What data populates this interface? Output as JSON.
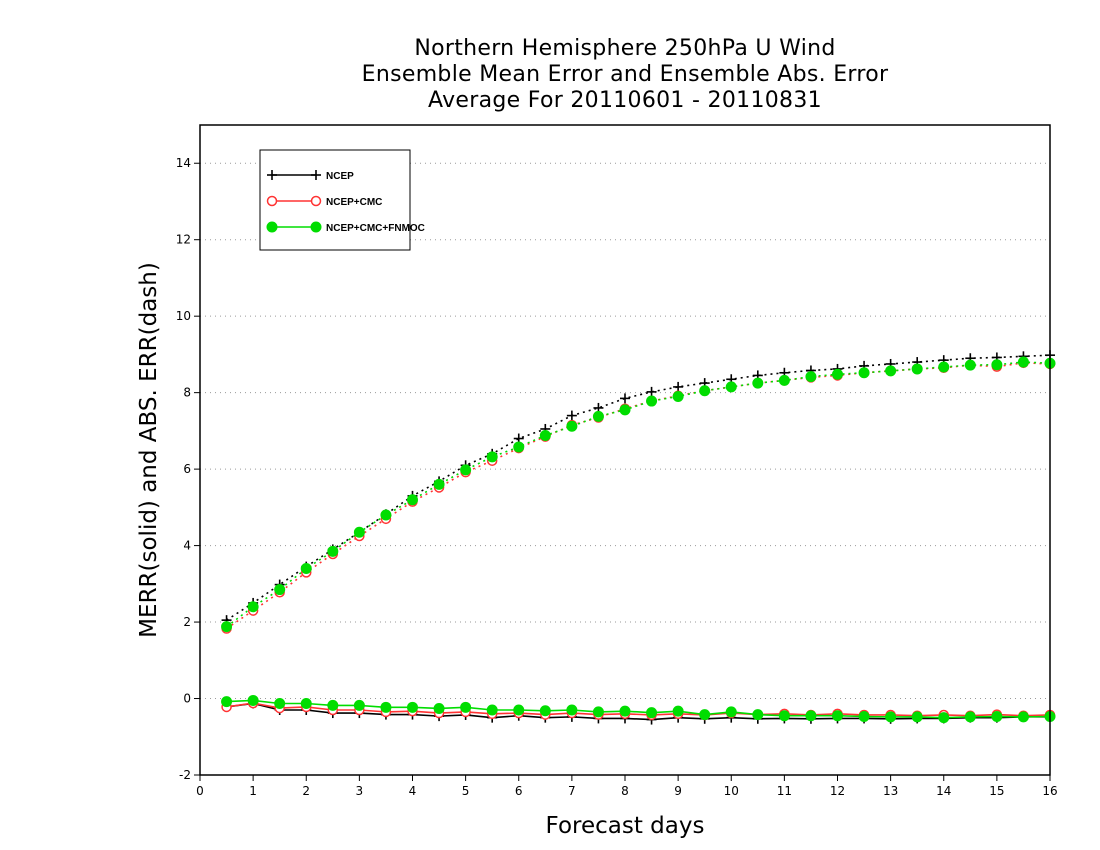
{
  "chart_data": {
    "type": "line",
    "title": [
      "Northern Hemisphere 250hPa U Wind",
      "Ensemble Mean Error and Ensemble Abs. Error",
      "Average For 20110601 - 20110831"
    ],
    "xlabel": "Forecast days",
    "ylabel": "MERR(solid) and ABS. ERR(dash)",
    "xlim": [
      0,
      16
    ],
    "ylim": [
      -2,
      15
    ],
    "xticks": [
      "0",
      "1",
      "2",
      "3",
      "4",
      "5",
      "6",
      "7",
      "8",
      "9",
      "10",
      "11",
      "12",
      "13",
      "14",
      "15",
      "16"
    ],
    "yticks": [
      "-2",
      "0",
      "2",
      "4",
      "6",
      "8",
      "10",
      "12",
      "14"
    ],
    "grid": "horizontal-dotted",
    "legend_position": "top-left",
    "x": [
      0.5,
      1,
      1.5,
      2,
      2.5,
      3,
      3.5,
      4,
      4.5,
      5,
      5.5,
      6,
      6.5,
      7,
      7.5,
      8,
      8.5,
      9,
      9.5,
      10,
      10.5,
      11,
      11.5,
      12,
      12.5,
      13,
      13.5,
      14,
      14.5,
      15,
      15.5,
      16
    ],
    "series": [
      {
        "name": "NCEP",
        "color": "#000000",
        "marker": "plus",
        "abs_error": [
          2.05,
          2.5,
          2.98,
          3.45,
          3.9,
          4.35,
          4.82,
          5.3,
          5.68,
          6.1,
          6.4,
          6.8,
          7.05,
          7.4,
          7.6,
          7.85,
          8.02,
          8.15,
          8.25,
          8.35,
          8.45,
          8.52,
          8.58,
          8.62,
          8.7,
          8.75,
          8.8,
          8.85,
          8.9,
          8.92,
          8.95,
          8.98
        ],
        "mean_error": [
          -0.22,
          -0.13,
          -0.3,
          -0.3,
          -0.38,
          -0.38,
          -0.42,
          -0.42,
          -0.46,
          -0.43,
          -0.5,
          -0.45,
          -0.5,
          -0.48,
          -0.52,
          -0.52,
          -0.55,
          -0.5,
          -0.53,
          -0.5,
          -0.53,
          -0.52,
          -0.53,
          -0.52,
          -0.52,
          -0.53,
          -0.52,
          -0.52,
          -0.5,
          -0.5,
          -0.48,
          -0.48
        ]
      },
      {
        "name": "NCEP+CMC",
        "color": "#ff3333",
        "marker": "open-circle",
        "abs_error": [
          1.83,
          2.3,
          2.78,
          3.3,
          3.78,
          4.25,
          4.7,
          5.15,
          5.52,
          5.92,
          6.22,
          6.55,
          6.85,
          7.15,
          7.35,
          7.58,
          7.78,
          7.92,
          8.05,
          8.15,
          8.25,
          8.32,
          8.4,
          8.45,
          8.52,
          8.57,
          8.62,
          8.65,
          8.72,
          8.68,
          8.78,
          8.75
        ],
        "mean_error": [
          -0.22,
          -0.12,
          -0.25,
          -0.22,
          -0.3,
          -0.3,
          -0.35,
          -0.33,
          -0.38,
          -0.35,
          -0.4,
          -0.38,
          -0.42,
          -0.38,
          -0.42,
          -0.4,
          -0.43,
          -0.4,
          -0.43,
          -0.38,
          -0.42,
          -0.4,
          -0.43,
          -0.4,
          -0.43,
          -0.43,
          -0.45,
          -0.43,
          -0.45,
          -0.42,
          -0.45,
          -0.43
        ]
      },
      {
        "name": "NCEP+CMC+FNMOC",
        "color": "#00dd00",
        "marker": "filled-circle",
        "abs_error": [
          1.88,
          2.4,
          2.85,
          3.4,
          3.85,
          4.35,
          4.8,
          5.2,
          5.6,
          5.98,
          6.32,
          6.58,
          6.88,
          7.12,
          7.38,
          7.55,
          7.78,
          7.9,
          8.05,
          8.15,
          8.25,
          8.32,
          8.42,
          8.48,
          8.52,
          8.57,
          8.62,
          8.67,
          8.72,
          8.73,
          8.8,
          8.77
        ],
        "mean_error": [
          -0.08,
          -0.05,
          -0.13,
          -0.13,
          -0.18,
          -0.18,
          -0.23,
          -0.23,
          -0.26,
          -0.23,
          -0.3,
          -0.3,
          -0.32,
          -0.3,
          -0.35,
          -0.33,
          -0.37,
          -0.33,
          -0.42,
          -0.35,
          -0.42,
          -0.45,
          -0.45,
          -0.45,
          -0.47,
          -0.48,
          -0.48,
          -0.5,
          -0.48,
          -0.47,
          -0.48,
          -0.47
        ]
      }
    ]
  }
}
